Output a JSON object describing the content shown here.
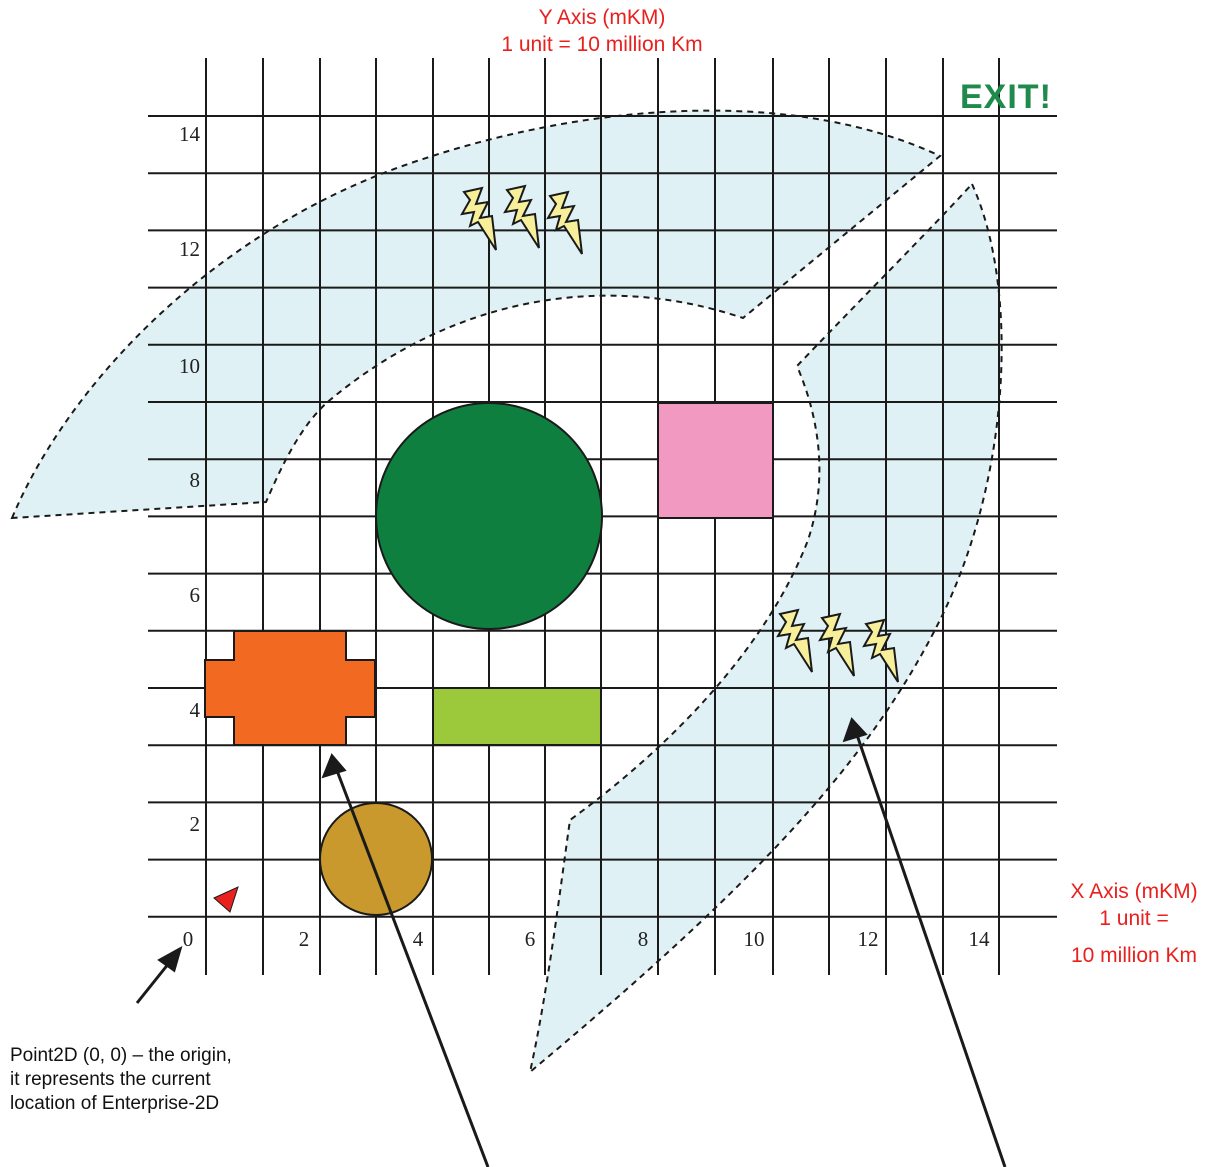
{
  "axes": {
    "y_title": "Y Axis (mKM)",
    "y_unit": "1 unit = 10 million Km",
    "x_title": "X Axis (mKM)",
    "x_unit_line1": "1 unit =",
    "x_unit_line2": "10 million Km",
    "x_ticks": [
      "0",
      "2",
      "4",
      "6",
      "8",
      "10",
      "12",
      "14"
    ],
    "y_ticks": [
      "2",
      "4",
      "6",
      "8",
      "10",
      "12",
      "14"
    ]
  },
  "exit_label": "EXIT!",
  "origin_note": {
    "line1": "Point2D (0, 0) – the origin,",
    "line2": "it represents the current",
    "line3": "location of Enterprise-2D"
  },
  "colors": {
    "grid": "#1a1a1a",
    "band_fill": "#dff1f5",
    "green_circle": "#0f7f3f",
    "pink_square": "#f299c2",
    "orange_cross": "#f26a21",
    "lime_rect": "#9bc93b",
    "brown_circle": "#c9992e",
    "ship": "#e8201e",
    "bolt": "#f7ef9a",
    "axis_text": "#e8201e",
    "exit_text": "#1f8a4c"
  },
  "objects": {
    "ship": "red-triangle",
    "green_circle": "green-planet",
    "pink_square": "pink-square",
    "orange_cross": "orange-cross",
    "lime_rect": "green-rectangle",
    "brown_circle": "brown-planet",
    "storm_bolts_top": "lightning-bolts",
    "storm_bolts_right": "lightning-bolts"
  }
}
